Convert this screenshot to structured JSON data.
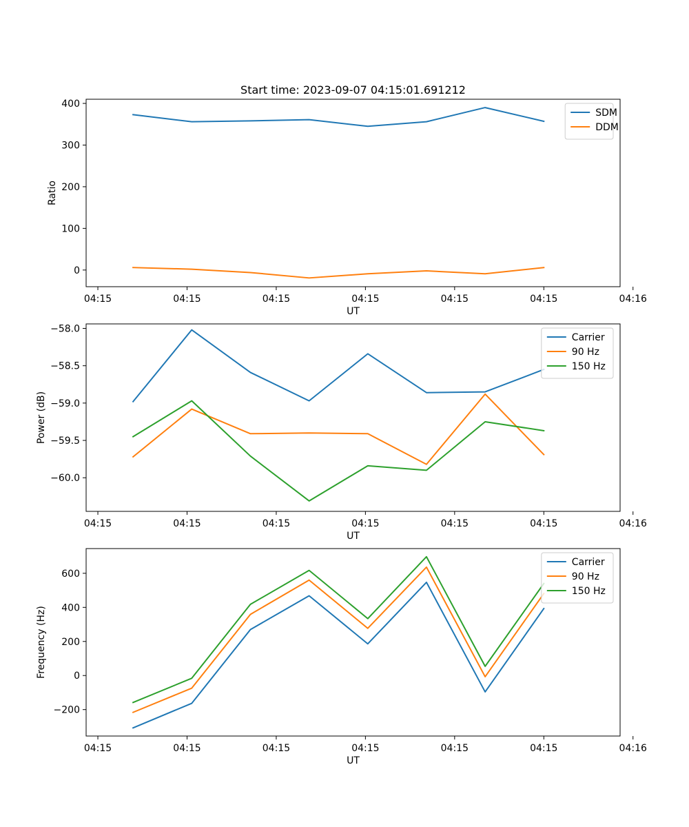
{
  "title": "Start time: 2023-09-07 04:15:01.691212",
  "colors": {
    "blue": "#1f77b4",
    "orange": "#ff7f0e",
    "green": "#2ca02c"
  },
  "chart_data": [
    {
      "type": "line",
      "xlabel": "UT",
      "ylabel": "Ratio",
      "x": [
        1,
        2,
        3,
        4,
        5,
        6,
        7,
        8
      ],
      "xlim": [
        0.2,
        9.3
      ],
      "xticks": [
        0.4,
        1.92,
        3.44,
        4.96,
        6.48,
        8.0,
        9.52
      ],
      "xtick_labels": [
        "04:15",
        "04:15",
        "04:15",
        "04:15",
        "04:15",
        "04:15",
        "04:16"
      ],
      "ylim": [
        -40,
        410
      ],
      "yticks": [
        0,
        100,
        200,
        300,
        400
      ],
      "ytick_labels": [
        "0",
        "100",
        "200",
        "300",
        "400"
      ],
      "legend_position": "upper right",
      "series": [
        {
          "name": "SDM",
          "color": "#1f77b4",
          "values": [
            373,
            356,
            358,
            361,
            345,
            356,
            390,
            357
          ]
        },
        {
          "name": "DDM",
          "color": "#ff7f0e",
          "values": [
            6,
            2,
            -6,
            -19,
            -9,
            -2,
            -9,
            6
          ]
        }
      ]
    },
    {
      "type": "line",
      "xlabel": "UT",
      "ylabel": "Power (dB)",
      "x": [
        1,
        2,
        3,
        4,
        5,
        6,
        7,
        8
      ],
      "xlim": [
        0.2,
        9.3
      ],
      "xticks": [
        0.4,
        1.92,
        3.44,
        4.96,
        6.48,
        8.0,
        9.52
      ],
      "xtick_labels": [
        "04:15",
        "04:15",
        "04:15",
        "04:15",
        "04:15",
        "04:15",
        "04:16"
      ],
      "ylim": [
        -60.45,
        -57.94
      ],
      "yticks": [
        -60.0,
        -59.5,
        -59.0,
        -58.5,
        -58.0
      ],
      "ytick_labels": [
        "−60.0",
        "−59.5",
        "−59.0",
        "−58.5",
        "−58.0"
      ],
      "legend_position": "upper right",
      "series": [
        {
          "name": "Carrier",
          "color": "#1f77b4",
          "values": [
            -58.98,
            -58.02,
            -58.59,
            -58.97,
            -58.34,
            -58.86,
            -58.85,
            -58.55
          ]
        },
        {
          "name": "90 Hz",
          "color": "#ff7f0e",
          "values": [
            -59.72,
            -59.08,
            -59.41,
            -59.4,
            -59.41,
            -59.82,
            -58.88,
            -59.69
          ]
        },
        {
          "name": "150 Hz",
          "color": "#2ca02c",
          "values": [
            -59.45,
            -58.97,
            -59.71,
            -60.31,
            -59.84,
            -59.9,
            -59.25,
            -59.37
          ]
        }
      ]
    },
    {
      "type": "line",
      "xlabel": "UT",
      "ylabel": "Frequency (Hz)",
      "x": [
        1,
        2,
        3,
        4,
        5,
        6,
        7,
        8
      ],
      "xlim": [
        0.2,
        9.3
      ],
      "xticks": [
        0.4,
        1.92,
        3.44,
        4.96,
        6.48,
        8.0,
        9.52
      ],
      "xtick_labels": [
        "04:15",
        "04:15",
        "04:15",
        "04:15",
        "04:15",
        "04:15",
        "04:16"
      ],
      "ylim": [
        -355,
        745
      ],
      "yticks": [
        -200,
        0,
        200,
        400,
        600
      ],
      "ytick_labels": [
        "−200",
        "0",
        "200",
        "400",
        "600"
      ],
      "legend_position": "upper right",
      "series": [
        {
          "name": "Carrier",
          "color": "#1f77b4",
          "values": [
            -307,
            -163,
            270,
            468,
            186,
            547,
            -96,
            393
          ]
        },
        {
          "name": "90 Hz",
          "color": "#ff7f0e",
          "values": [
            -216,
            -74,
            359,
            560,
            277,
            636,
            -7,
            481
          ]
        },
        {
          "name": "150 Hz",
          "color": "#2ca02c",
          "values": [
            -158,
            -16,
            418,
            617,
            334,
            697,
            54,
            540
          ]
        }
      ]
    }
  ]
}
